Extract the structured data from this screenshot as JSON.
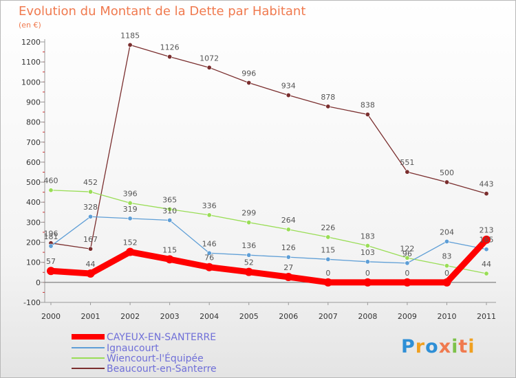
{
  "header": {
    "title": "Evolution du Montant de la Dette par Habitant",
    "unit": "(en €)"
  },
  "logo": {
    "text": "Proxiti"
  },
  "chart_data": {
    "type": "line",
    "title": "Evolution du Montant de la Dette par Habitant",
    "subtitle": "(en €)",
    "xlabel": "",
    "ylabel": "",
    "x": [
      2000,
      2001,
      2002,
      2003,
      2004,
      2005,
      2006,
      2007,
      2008,
      2009,
      2010,
      2011
    ],
    "ylim": [
      -100,
      1200
    ],
    "yticks": [
      -100,
      0,
      100,
      200,
      300,
      400,
      500,
      600,
      700,
      800,
      900,
      1000,
      1100,
      1200
    ],
    "grid": false,
    "legend": "bottom-left",
    "series": [
      {
        "name": "CAYEUX-EN-SANTERRE",
        "color": "#ff0000",
        "values": [
          57,
          44,
          152,
          115,
          76,
          52,
          27,
          0,
          0,
          0,
          0,
          213
        ]
      },
      {
        "name": "Ignaucourt",
        "color": "#5e9ed6",
        "values": [
          181,
          328,
          319,
          310,
          146,
          136,
          126,
          115,
          103,
          96,
          204,
          165
        ]
      },
      {
        "name": "Wiencourt-l'Équipée",
        "color": "#99dd55",
        "values": [
          460,
          452,
          396,
          365,
          336,
          299,
          264,
          226,
          183,
          122,
          83,
          44
        ]
      },
      {
        "name": "Beaucourt-en-Santerre",
        "color": "#7a2e2e",
        "values": [
          196,
          167,
          1185,
          1126,
          1072,
          996,
          934,
          878,
          838,
          551,
          500,
          443
        ]
      }
    ],
    "data_labels": [
      {
        "series": 0,
        "values": [
          "57",
          "44",
          "152",
          "115",
          "76",
          "52",
          "27",
          "0",
          "0",
          "0",
          "0",
          "213"
        ]
      },
      {
        "series": 1,
        "values": [
          "181",
          "328",
          "319",
          "310",
          "146",
          "136",
          "126",
          "115",
          "103",
          "96",
          "204",
          "165"
        ]
      },
      {
        "series": 2,
        "values": [
          "460",
          "452",
          "396",
          "365",
          "336",
          "299",
          "264",
          "226",
          "183",
          "122",
          "83",
          "44"
        ]
      },
      {
        "series": 3,
        "values": [
          "196",
          "167",
          "1185",
          "1126",
          "1072",
          "996",
          "934",
          "878",
          "838",
          "551",
          "500",
          "443"
        ]
      }
    ]
  }
}
